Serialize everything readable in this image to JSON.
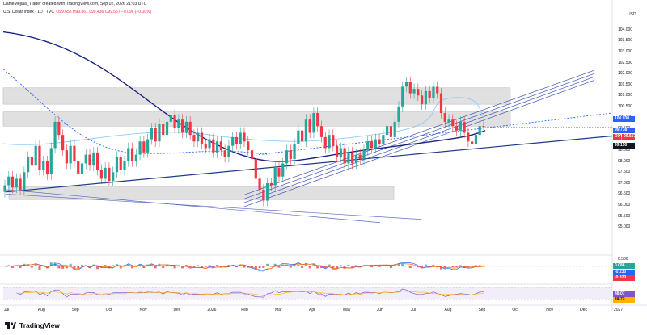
{
  "header": {
    "author": "DanieMejiaa_Trader created with TradingView.com, Sep 02, 2026 21:03 UTC",
    "symbol": "U.S. Dollar Index · 1D · TVC",
    "ohlc": "O99.655  H99.861  L99.436  C99.557  −0.096 (−0.10%)"
  },
  "currency": "USD",
  "price_axis": {
    "labels": [
      "104.000",
      "103.500",
      "103.000",
      "102.500",
      "102.000",
      "101.500",
      "101.000",
      "100.500",
      "100.000",
      "99.500",
      "99.000",
      "98.500",
      "98.000",
      "97.500",
      "97.000",
      "96.500",
      "96.000",
      "95.500",
      "95.000"
    ],
    "range": [
      94.6,
      104.4
    ]
  },
  "tags": {
    "upper_ma": {
      "text": "100.030",
      "color": "#2962ff"
    },
    "close_price": {
      "text": "99.738",
      "color": "#2962ff"
    },
    "dxy": {
      "text": "DXY",
      "color": "#f23645"
    },
    "last_price": {
      "text": "99.557",
      "color": "#f23645"
    },
    "lower_ma": {
      "text": "99.150",
      "color": "#131722"
    },
    "macd_value": {
      "text": "0.086",
      "color": "#26a69a"
    },
    "macd_signal": {
      "text": "-0.230",
      "color": "#2962ff"
    },
    "macd_hist": {
      "text": "-0.320",
      "color": "#f23645"
    },
    "rsi_value": {
      "text": "48.07",
      "color": "#7e57c2"
    },
    "rsi_ma": {
      "text": "38.73",
      "color": "#ffb300"
    }
  },
  "macd_axis": {
    "label": "0.500"
  },
  "time_axis": [
    "Jul",
    "Aug",
    "Sep",
    "Oct",
    "Nov",
    "Dec",
    "2026",
    "Feb",
    "Mar",
    "Apr",
    "May",
    "Jun",
    "Jul",
    "Aug",
    "Sep",
    "Oct",
    "Nov",
    "Dec",
    "2027"
  ],
  "footer": {
    "brand": "TradingView"
  },
  "colors": {
    "up": "#26a69a",
    "down": "#f23645",
    "line": "#1e3a8a",
    "ma": "#2962ff",
    "zone": "#d6d6d6"
  },
  "chart_data": {
    "type": "candlestick",
    "ylim": [
      94.6,
      104.4
    ],
    "series": [
      {
        "name": "DXY",
        "values": [
          96.9,
          97.3,
          96.8,
          97.2,
          96.7,
          97.5,
          98.2,
          97.8,
          98.7,
          97.6,
          98.0,
          97.4,
          98.6,
          99.8,
          99.2,
          98.5,
          97.9,
          98.7,
          98.0,
          97.4,
          97.9,
          98.3,
          97.8,
          98.4,
          97.6,
          97.2,
          97.7,
          97.1,
          97.5,
          98.2,
          97.6,
          98.0,
          98.6,
          98.0,
          98.3,
          98.9,
          98.4,
          99.0,
          99.5,
          98.9,
          99.7,
          99.2,
          99.8,
          100.1,
          99.5,
          99.9,
          99.3,
          99.8,
          99.2,
          98.9,
          99.3,
          98.8,
          98.6,
          99.0,
          98.4,
          98.9,
          98.5,
          98.2,
          98.7,
          99.1,
          98.8,
          99.3,
          98.9,
          98.5,
          98.1,
          97.2,
          96.7,
          96.2,
          97.0,
          96.9,
          97.7,
          97.3,
          97.9,
          98.5,
          98.1,
          98.8,
          99.4,
          98.9,
          99.9,
          99.3,
          100.2,
          99.6,
          99.1,
          98.6,
          99.2,
          98.7,
          98.2,
          98.6,
          97.9,
          98.4,
          97.9,
          98.3,
          98.1,
          98.5,
          98.9,
          98.6,
          99.0,
          98.8,
          99.2,
          99.6,
          99.1,
          99.8,
          100.5,
          101.4,
          101.6,
          101.1,
          101.3,
          101.0,
          100.6,
          101.2,
          100.9,
          101.4,
          101.1,
          100.2,
          99.8,
          99.9,
          99.6,
          99.4,
          99.8,
          99.3,
          98.9,
          98.8,
          99.2,
          99.6,
          99.557
        ]
      }
    ]
  }
}
